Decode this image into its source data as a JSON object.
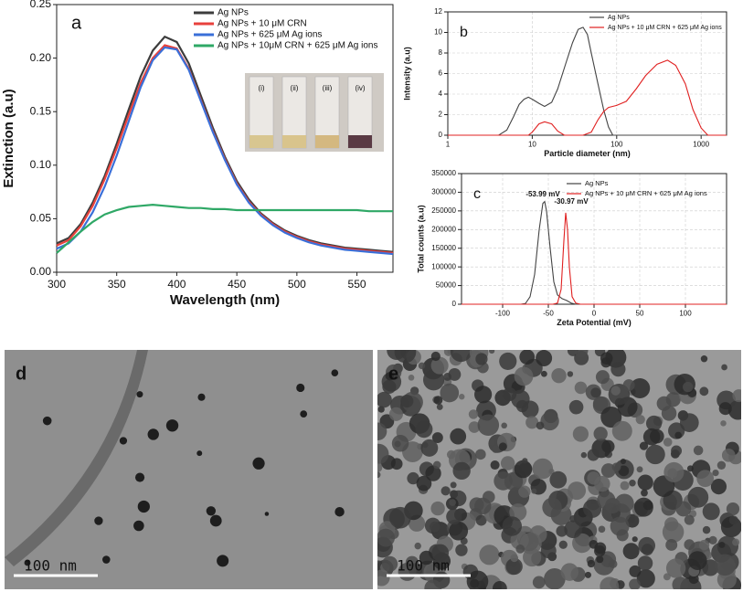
{
  "chart_data": [
    {
      "type": "line",
      "panel_label": "a",
      "xlabel": "Wavelength (nm)",
      "ylabel": "Extinction (a.u)",
      "xlim": [
        300,
        580
      ],
      "ylim": [
        0,
        0.25
      ],
      "xticks": [
        300,
        350,
        400,
        450,
        500,
        550
      ],
      "yticks": [
        {
          "value": 0,
          "label": "0.00"
        },
        {
          "value": 0.05,
          "label": "0.05"
        },
        {
          "value": 0.1,
          "label": "0.10"
        },
        {
          "value": 0.15,
          "label": "0.15"
        },
        {
          "value": 0.2,
          "label": "0.20"
        },
        {
          "value": 0.25,
          "label": "0.25"
        }
      ],
      "legend": "upper right",
      "grid": false,
      "inset_labels": [
        "(i)",
        "(ii)",
        "(iii)",
        "(iv)"
      ],
      "x": [
        300,
        310,
        320,
        330,
        340,
        350,
        360,
        370,
        380,
        390,
        400,
        410,
        420,
        430,
        440,
        450,
        460,
        470,
        480,
        490,
        500,
        510,
        520,
        530,
        540,
        550,
        560,
        570,
        580
      ],
      "series": [
        {
          "name": "Ag NPs",
          "color": "#3c3c3c",
          "values": [
            0.027,
            0.032,
            0.045,
            0.065,
            0.09,
            0.12,
            0.152,
            0.183,
            0.207,
            0.22,
            0.215,
            0.195,
            0.165,
            0.135,
            0.108,
            0.085,
            0.068,
            0.055,
            0.046,
            0.039,
            0.034,
            0.03,
            0.027,
            0.025,
            0.023,
            0.022,
            0.021,
            0.02,
            0.019
          ]
        },
        {
          "name": "Ag NPs + 10 μM CRN",
          "color": "#e8413c",
          "values": [
            0.025,
            0.03,
            0.043,
            0.062,
            0.087,
            0.116,
            0.147,
            0.177,
            0.2,
            0.212,
            0.209,
            0.19,
            0.161,
            0.132,
            0.106,
            0.083,
            0.066,
            0.054,
            0.045,
            0.038,
            0.033,
            0.029,
            0.026,
            0.024,
            0.022,
            0.021,
            0.02,
            0.019,
            0.018
          ]
        },
        {
          "name": "Ag NPs + 625 μM Ag ions",
          "color": "#3a6fd8",
          "values": [
            0.022,
            0.027,
            0.038,
            0.056,
            0.08,
            0.109,
            0.141,
            0.173,
            0.198,
            0.21,
            0.208,
            0.189,
            0.16,
            0.131,
            0.105,
            0.082,
            0.065,
            0.053,
            0.044,
            0.037,
            0.032,
            0.028,
            0.025,
            0.023,
            0.021,
            0.02,
            0.019,
            0.018,
            0.017
          ]
        },
        {
          "name": "Ag NPs + 10μM CRN + 625 μM Ag ions",
          "color": "#2fa866",
          "values": [
            0.018,
            0.028,
            0.038,
            0.047,
            0.054,
            0.058,
            0.061,
            0.062,
            0.063,
            0.062,
            0.061,
            0.06,
            0.06,
            0.059,
            0.059,
            0.058,
            0.058,
            0.058,
            0.058,
            0.058,
            0.058,
            0.058,
            0.058,
            0.058,
            0.058,
            0.058,
            0.057,
            0.057,
            0.057
          ]
        }
      ]
    },
    {
      "type": "line",
      "panel_label": "b",
      "xlabel": "Particle diameter (nm)",
      "ylabel": "Intensity (a.u)",
      "xscale": "log",
      "xlim": [
        1,
        2000
      ],
      "ylim": [
        0,
        12
      ],
      "xticks": [
        1,
        10,
        100,
        1000
      ],
      "yticks": [
        0,
        2,
        4,
        6,
        8,
        10,
        12
      ],
      "legend": "upper right",
      "grid": true,
      "series": [
        {
          "name": "Ag NPs",
          "color": "#444444",
          "x": [
            1,
            4,
            5,
            6,
            7,
            8,
            9,
            10,
            12,
            14,
            17,
            20,
            25,
            30,
            35,
            40,
            45,
            50,
            60,
            70,
            80,
            90,
            2000
          ],
          "values": [
            0,
            0,
            0.5,
            1.8,
            3,
            3.5,
            3.7,
            3.5,
            3.1,
            2.8,
            3.2,
            4.5,
            7,
            9,
            10.3,
            10.5,
            9.8,
            8,
            5,
            2.5,
            0.8,
            0,
            0
          ]
        },
        {
          "name": "Ag NPs + 10 μM CRN + 625 μM Ag ions",
          "color": "#e02020",
          "x": [
            1,
            9,
            10,
            12,
            14,
            17,
            20,
            24,
            40,
            50,
            60,
            70,
            80,
            100,
            130,
            170,
            220,
            300,
            400,
            500,
            650,
            800,
            1000,
            1200,
            2000
          ],
          "values": [
            0,
            0,
            0.3,
            1.1,
            1.3,
            1.1,
            0.4,
            0,
            0,
            0.3,
            1.5,
            2.3,
            2.7,
            2.9,
            3.3,
            4.5,
            5.8,
            6.9,
            7.3,
            6.8,
            5,
            2.5,
            0.7,
            0,
            0
          ]
        }
      ]
    },
    {
      "type": "line",
      "panel_label": "c",
      "xlabel": "Zeta Potential (mV)",
      "ylabel": "Total counts (a.u)",
      "xlim": [
        -145,
        145
      ],
      "ylim": [
        0,
        350000
      ],
      "xticks": [
        -100,
        -50,
        0,
        50,
        100
      ],
      "yticks": [
        0,
        50000,
        100000,
        150000,
        200000,
        250000,
        300000,
        350000
      ],
      "legend": "upper right",
      "grid": true,
      "annotations": [
        "-53.99 mV",
        "-30.97 mV"
      ],
      "series": [
        {
          "name": "Ag NPs",
          "color": "#444444",
          "x": [
            -145,
            -80,
            -75,
            -70,
            -65,
            -60,
            -56,
            -54,
            -52,
            -48,
            -44,
            -40,
            -35,
            -30,
            -25,
            -20,
            145
          ],
          "values": [
            0,
            0,
            2000,
            20000,
            80000,
            200000,
            270000,
            275000,
            250000,
            150000,
            60000,
            25000,
            15000,
            10000,
            3000,
            0,
            0
          ]
        },
        {
          "name": "Ag NPs + 10 μM CRN + 625 μM Ag ions",
          "color": "#e02020",
          "x": [
            -145,
            -45,
            -40,
            -36,
            -33,
            -31,
            -29,
            -27,
            -24,
            -20,
            -15,
            145
          ],
          "values": [
            0,
            0,
            3000,
            40000,
            170000,
            245000,
            200000,
            100000,
            20000,
            3000,
            0,
            0
          ]
        }
      ]
    }
  ],
  "images": [
    {
      "label": "d",
      "scale_bar": "100 nm"
    },
    {
      "label": "e",
      "scale_bar": "100 nm"
    }
  ]
}
